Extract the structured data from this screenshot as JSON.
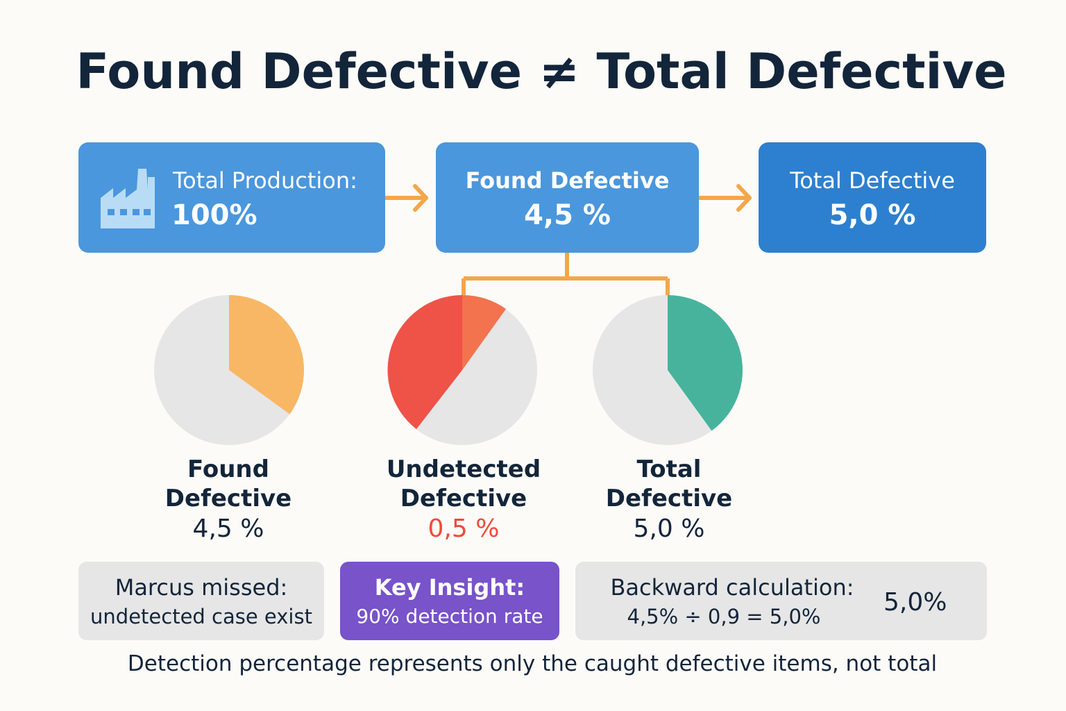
{
  "title": "Found Defective ≠ Total Defective",
  "flow": {
    "production": {
      "label": "Total Production:",
      "value": "100%",
      "icon": "factory-icon"
    },
    "found": {
      "label": "Found Defective",
      "value": "4,5 %"
    },
    "total": {
      "label": "Total Defective",
      "value": "5,0 %"
    }
  },
  "pies": [
    {
      "line1": "Found",
      "line2": "Defective",
      "value": "4,5 %",
      "fraction": 0.35,
      "color": "#f8b765"
    },
    {
      "line1": "Undetected",
      "line2": "Defective",
      "value": "0,5 %",
      "value_color": "#ee4b3c",
      "colors": [
        "#ef5246",
        "#f2734e"
      ]
    },
    {
      "line1": "Total",
      "line2": "Defective",
      "value": "5,0 %",
      "fraction": 0.4,
      "color": "#47b39c"
    }
  ],
  "info": {
    "marcus": {
      "line1": "Marcus missed:",
      "line2": "undetected case exist"
    },
    "insight": {
      "line1": "Key Insight:",
      "line2": "90% detection rate"
    },
    "backward": {
      "line1": "Backward calculation:",
      "line2": "4,5% ÷ 0,9 = 5,0%",
      "result": "5,0%"
    }
  },
  "footer": "Detection percentage represents only the caught defective items, not total",
  "colors": {
    "primary_box": "#4a97dd",
    "dark_box": "#2d80cf",
    "arrow": "#f4a64a",
    "pie_bg": "#e6e6e6",
    "insight_box": "#7853c9",
    "text_dark": "#13253a"
  }
}
